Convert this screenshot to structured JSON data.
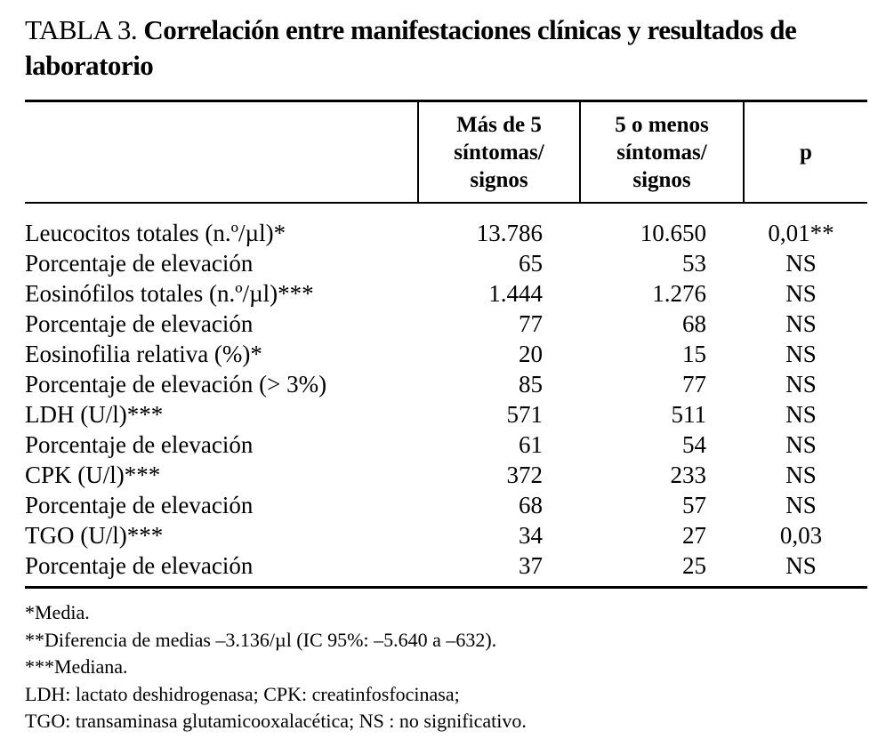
{
  "title": {
    "label": "TABLA 3.",
    "text": "Correlación entre manifestaciones clínicas y resultados de laboratorio"
  },
  "table": {
    "header": [
      [
        "Más de 5",
        "síntomas/",
        "signos"
      ],
      [
        "5 o menos",
        "síntomas/",
        "signos"
      ],
      [
        "p"
      ]
    ],
    "rows": [
      [
        "Leucocitos totales (n.º/µl)*",
        "13.786",
        "10.650",
        "0,01**"
      ],
      [
        "Porcentaje de elevación",
        "65",
        "53",
        "NS"
      ],
      [
        "Eosinófilos totales (n.º/µl)***",
        "1.444",
        "1.276",
        "NS"
      ],
      [
        "Porcentaje de elevación",
        "77",
        "68",
        "NS"
      ],
      [
        "Eosinofilia relativa (%)*",
        "20",
        "15",
        "NS"
      ],
      [
        "Porcentaje de elevación (> 3%)",
        "85",
        "77",
        "NS"
      ],
      [
        "LDH (U/l)***",
        "571",
        "511",
        "NS"
      ],
      [
        "Porcentaje de elevación",
        "61",
        "54",
        "NS"
      ],
      [
        "CPK (U/l)***",
        "372",
        "233",
        "NS"
      ],
      [
        "Porcentaje de elevación",
        "68",
        "57",
        "NS"
      ],
      [
        "TGO (U/l)***",
        "34",
        "27",
        "0,03"
      ],
      [
        "Porcentaje de elevación",
        "37",
        "25",
        "NS"
      ]
    ]
  },
  "footnotes": [
    "*Media.",
    "**Diferencia de medias –3.136/µl (IC 95%: –5.640 a –632).",
    "***Mediana.",
    "LDH: lactato deshidrogenasa; CPK: creatinfosfocinasa;",
    "TGO: transaminasa glutamicooxalacética; NS : no significativo."
  ]
}
